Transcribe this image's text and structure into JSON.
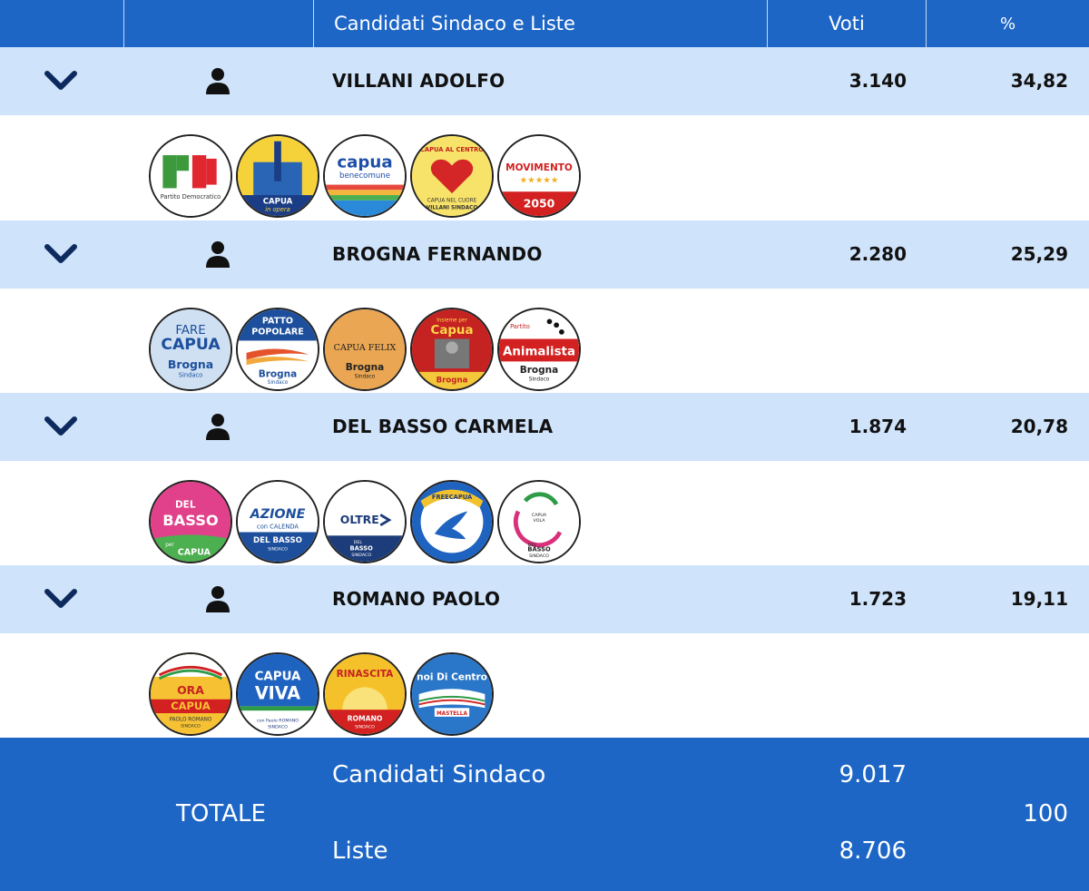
{
  "header": {
    "candidates_label": "Candidati Sindaco e Liste",
    "votes_label": "Voti",
    "pct_label": "%"
  },
  "colors": {
    "header_blue": "#1e66c6",
    "candidate_row": "#cfe3fb",
    "chevron": "#0d2a5e"
  },
  "candidates": [
    {
      "name": "VILLANI ADOLFO",
      "votes": "3.140",
      "pct": "34,82",
      "lists": [
        "PD Partito Democratico",
        "Movimento Capua in opera",
        "capua benecomune",
        "Capua al Centro - Villani Sindaco",
        "Movimento 2050"
      ]
    },
    {
      "name": "BROGNA FERNANDO",
      "votes": "2.280",
      "pct": "25,29",
      "lists": [
        "Fare Capua Brogna Sindaco",
        "Patto Popolare Brogna Sindaco",
        "Capua Felix Brogna Sindaco",
        "Insieme per Capua Brogna Sindaco",
        "Partito Animalista Brogna Sindaco"
      ]
    },
    {
      "name": "DEL BASSO CARMELA",
      "votes": "1.874",
      "pct": "20,78",
      "lists": [
        "Del Basso per Capua",
        "Azione con Calenda Del Basso Sindaco",
        "Oltre Del Basso Sindaco",
        "FreeCapua",
        "Capua Vola Del Basso Sindaco"
      ]
    },
    {
      "name": "ROMANO PAOLO",
      "votes": "1.723",
      "pct": "19,11",
      "lists": [
        "Ora Capua Paolo Romano Sindaco",
        "Capua Viva con Paolo Romano Sindaco",
        "Rinascita Romano Sindaco",
        "Noi di Centro Mastella"
      ]
    }
  ],
  "logo_text": {
    "pd_big": "PD",
    "pd_small": "Partito Democratico",
    "mov_top": "movimento",
    "mov_bottom": "CAPUA",
    "mov_sub": "in opera",
    "bc_title": "capua",
    "bc_sub": "benecomune",
    "cac_top": "CAPUA AL CENTRO",
    "cac_mid": "CAPUA NEL CUORE",
    "cac_bottom": "VILLANI SINDACO",
    "m2050_top": "MOVIMENTO",
    "m2050_stars": "★★★★★",
    "m2050_year": "2050",
    "fc_fare": "FARE",
    "fc_capua": "CAPUA",
    "brogna": "Brogna",
    "sindaco": "Sindaco",
    "pp_patto": "PATTO",
    "pp_popolare": "POPOLARE",
    "cf_title": "CAPUA FELIX",
    "ipc_insieme": "Insieme per",
    "ipc_capua": "Capua",
    "pa_partito": "Partito",
    "pa_animalista": "Animalista",
    "db_del": "DEL",
    "db_basso": "BASSO",
    "db_per": "per",
    "db_capua": "CAPUA",
    "az_azione": "AZIONE",
    "az_calenda": "con CALENDA",
    "az_delbasso": "DEL BASSO",
    "az_sindaco": "SINDACO",
    "ol_oltre": "OLTRE",
    "ol_del": "DEL",
    "ol_basso": "BASSO",
    "ol_sindaco": "SINDACO",
    "fr_free": "FREECAPUA",
    "cv_capua": "CAPUA",
    "cv_vola": "VOLA",
    "cv_del": "DEL",
    "cv_basso": "BASSO",
    "cv_sindaco": "SINDACO",
    "oc_ora": "ORA",
    "oc_capua": "CAPUA",
    "oc_paolo": "PAOLO ROMANO",
    "oc_sindaco": "SINDACO",
    "viva_capua": "CAPUA",
    "viva_viva": "VIVA",
    "viva_con": "con Paolo ROMANO",
    "viva_sindaco": "SINDACO",
    "rin_title": "RINASCITA",
    "rin_romano": "ROMANO",
    "rin_sindaco": "SINDACO",
    "ndc_title": "noi Di Centro",
    "ndc_mastella": "MASTELLA"
  },
  "totals": {
    "label": "TOTALE",
    "candidates_label": "Candidati Sindaco",
    "candidates_votes": "9.017",
    "lists_label": "Liste",
    "lists_votes": "8.706",
    "pct": "100"
  }
}
